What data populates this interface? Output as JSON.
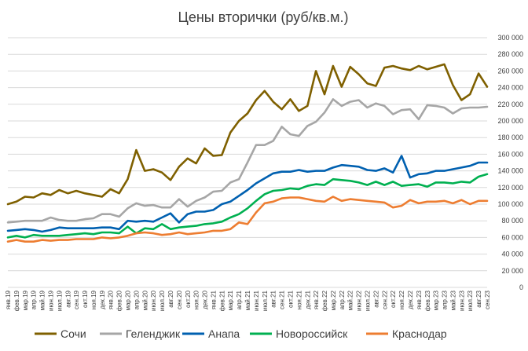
{
  "chart_data": {
    "type": "line",
    "title": "Цены вторички (руб/кв.м.)",
    "xlabel": "",
    "ylabel": "",
    "ylim": [
      0,
      300000
    ],
    "yticks": [
      0,
      20000,
      40000,
      60000,
      80000,
      100000,
      120000,
      140000,
      160000,
      180000,
      200000,
      220000,
      240000,
      260000,
      280000,
      300000
    ],
    "ytick_labels": [
      "0",
      "20 000",
      "40 000",
      "60 000",
      "80 000",
      "100 000",
      "120 000",
      "140 000",
      "160 000",
      "180 000",
      "200 000",
      "220 000",
      "240 000",
      "260 000",
      "280 000",
      "300 000"
    ],
    "y_axis_side": "right",
    "grid": true,
    "legend_position": "bottom",
    "categories": [
      "янв.19",
      "фев.19",
      "мар.19",
      "апр.19",
      "май.19",
      "июн.19",
      "июл.19",
      "авг.19",
      "сен.19",
      "окт.19",
      "ноя.19",
      "дек.19",
      "янв.20",
      "фев.20",
      "мар.20",
      "апр.20",
      "май.20",
      "июн.20",
      "июл.20",
      "авг.20",
      "сен.20",
      "окт.20",
      "ноя.20",
      "дек.20",
      "янв.21",
      "фев.21",
      "мар.21",
      "апр.21",
      "май.21",
      "июн.21",
      "июл.21",
      "авг.21",
      "сен.21",
      "окт.21",
      "ноя.21",
      "дек.21",
      "янв.22",
      "фев.22",
      "мар.22",
      "апр.22",
      "май.22",
      "июн.22",
      "июл.22",
      "авг.22",
      "сен.22",
      "окт.22",
      "ноя.22",
      "дек.22",
      "янв.23",
      "фев.23",
      "мар.23",
      "апр.23",
      "май.23",
      "июн.23",
      "июл.23",
      "авг.23",
      "сен.23"
    ],
    "series": [
      {
        "name": "Сочи",
        "color": "#7f6000",
        "values": [
          100000,
          103000,
          109000,
          108000,
          113000,
          111000,
          117000,
          113000,
          116000,
          113000,
          111000,
          109000,
          118000,
          113000,
          130000,
          165000,
          140000,
          142000,
          138000,
          129000,
          145000,
          155000,
          149000,
          167000,
          158000,
          159000,
          186000,
          200000,
          209000,
          225000,
          236000,
          223000,
          214000,
          226000,
          212000,
          218000,
          260000,
          232000,
          266000,
          241000,
          265000,
          256000,
          245000,
          242000,
          264000,
          266000,
          263000,
          261000,
          266000,
          262000,
          265000,
          268000,
          243000,
          225000,
          232000,
          257000,
          241000
        ]
      },
      {
        "name": "Геленджик",
        "color": "#a6a6a6",
        "values": [
          78000,
          79000,
          80000,
          80000,
          80000,
          84000,
          81000,
          80000,
          80000,
          82000,
          83000,
          88000,
          88000,
          85000,
          95000,
          101000,
          98000,
          99000,
          96000,
          96000,
          106000,
          97000,
          104000,
          108000,
          115000,
          116000,
          126000,
          130000,
          150000,
          171000,
          171000,
          176000,
          193000,
          184000,
          182000,
          194000,
          199000,
          210000,
          226000,
          218000,
          223000,
          225000,
          216000,
          221000,
          218000,
          208000,
          213000,
          214000,
          202000,
          219000,
          218000,
          216000,
          209000,
          215000,
          216000,
          216000,
          217000
        ]
      },
      {
        "name": "Анапа",
        "color": "#0060b0",
        "values": [
          68000,
          69000,
          70000,
          69000,
          67000,
          69000,
          72000,
          71000,
          71000,
          71000,
          71000,
          72000,
          72000,
          70000,
          80000,
          79000,
          80000,
          79000,
          84000,
          89000,
          78000,
          88000,
          91000,
          91000,
          93000,
          100000,
          103000,
          110000,
          117000,
          125000,
          131000,
          137000,
          139000,
          139000,
          141000,
          139000,
          140000,
          140000,
          144000,
          147000,
          146000,
          145000,
          141000,
          140000,
          143000,
          138000,
          158000,
          132000,
          136000,
          137000,
          140000,
          140000,
          142000,
          144000,
          146000,
          150000,
          150000
        ]
      },
      {
        "name": "Новороссийск",
        "color": "#00b050",
        "values": [
          60000,
          62000,
          60000,
          63000,
          62000,
          62000,
          62000,
          63000,
          64000,
          65000,
          64000,
          66000,
          66000,
          65000,
          73000,
          65000,
          71000,
          70000,
          76000,
          70000,
          72000,
          73000,
          74000,
          76000,
          77000,
          79000,
          84000,
          88000,
          95000,
          104000,
          112000,
          116000,
          117000,
          119000,
          118000,
          122000,
          124000,
          123000,
          130000,
          129000,
          128000,
          126000,
          123000,
          127000,
          123000,
          127000,
          122000,
          123000,
          124000,
          121000,
          126000,
          126000,
          125000,
          127000,
          126000,
          133000,
          136000
        ]
      },
      {
        "name": "Краснодар",
        "color": "#ed7d31",
        "values": [
          55000,
          57000,
          55000,
          55000,
          57000,
          56000,
          57000,
          57000,
          58000,
          58000,
          58000,
          60000,
          59000,
          60000,
          62000,
          65000,
          66000,
          65000,
          63000,
          64000,
          66000,
          64000,
          65000,
          66000,
          68000,
          68000,
          70000,
          78000,
          76000,
          90000,
          101000,
          103000,
          107000,
          108000,
          108000,
          106000,
          104000,
          103000,
          109000,
          104000,
          106000,
          105000,
          104000,
          103000,
          102000,
          96000,
          98000,
          105000,
          101000,
          103000,
          103000,
          104000,
          101000,
          105000,
          100000,
          104000,
          104000
        ]
      }
    ]
  }
}
